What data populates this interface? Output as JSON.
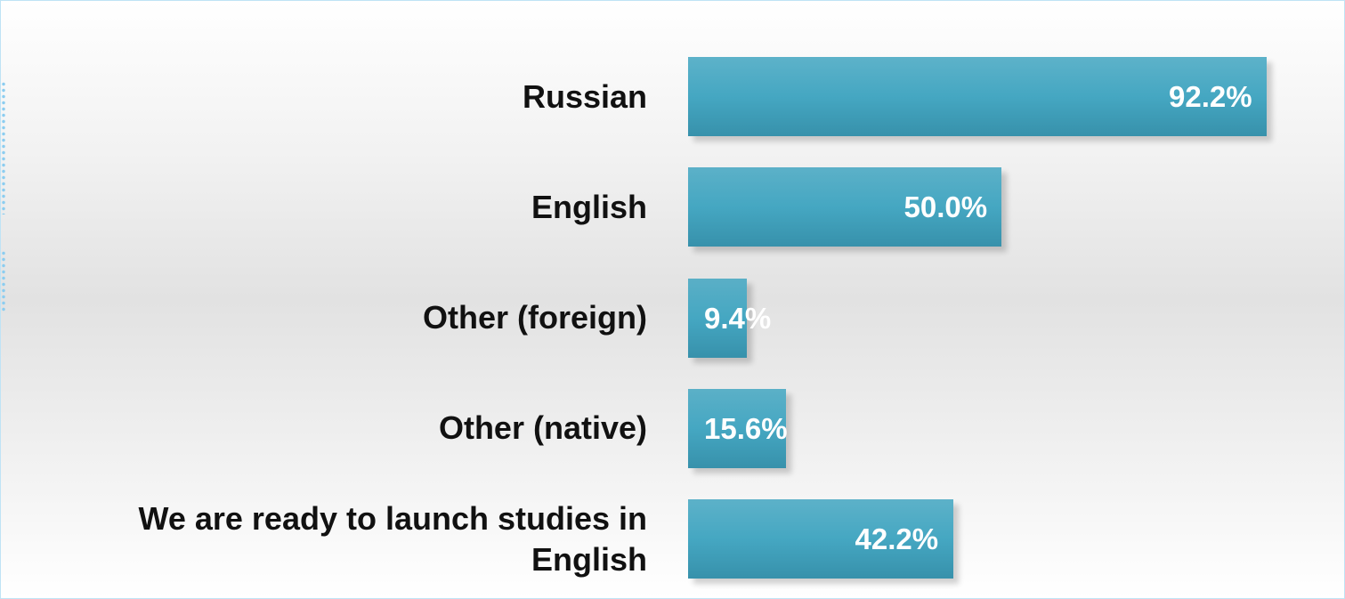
{
  "chart_data": {
    "type": "bar",
    "orientation": "horizontal",
    "categories": [
      "Russian",
      "English",
      "Other (foreign)",
      "Other (native)",
      "We are ready to launch studies in English"
    ],
    "values": [
      92.2,
      50.0,
      9.4,
      15.6,
      42.2
    ],
    "value_labels": [
      "92.2%",
      "50.0%",
      "9.4%",
      "15.6%",
      "42.2%"
    ],
    "color": "#45a7c2"
  }
}
